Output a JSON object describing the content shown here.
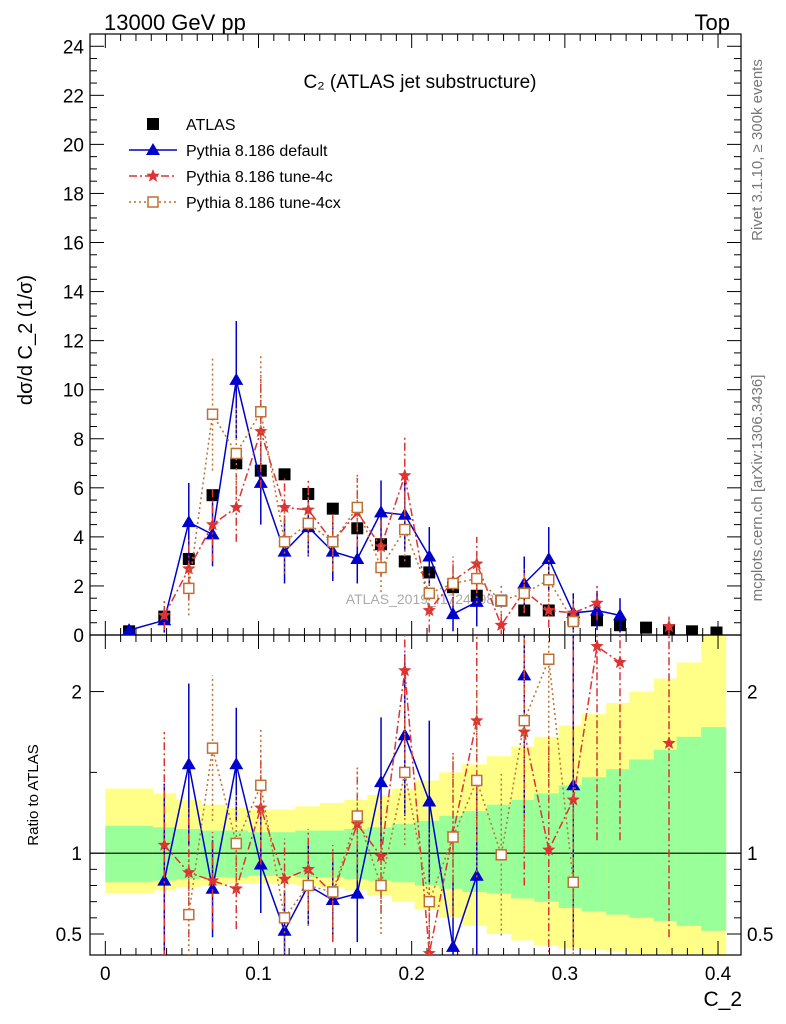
{
  "header": {
    "left": "13000 GeV pp",
    "right": "Top"
  },
  "side": {
    "rivet": "Rivet 3.1.10, ≥ 300k events",
    "mcplots": "mcplots.cern.ch [arXiv:1306.3436]"
  },
  "watermark": "ATLAS_2019_I1724098",
  "chart_data": [
    {
      "type": "scatter",
      "panel": "main",
      "title": "C₂ (ATLAS jet substructure)",
      "ylabel": "dσ/d C_2 (1/σ)",
      "xlim": [
        -0.01,
        0.415
      ],
      "ylim": [
        0,
        24.5
      ],
      "yticks": [
        0,
        2,
        4,
        6,
        8,
        10,
        12,
        14,
        16,
        18,
        20,
        22,
        24
      ],
      "legend_position": "top-left",
      "x": [
        0.0155,
        0.0385,
        0.0545,
        0.07,
        0.0855,
        0.1015,
        0.117,
        0.1325,
        0.1485,
        0.1645,
        0.18,
        0.1955,
        0.2115,
        0.227,
        0.2425,
        0.2585,
        0.2735,
        0.2895,
        0.3055,
        0.321,
        0.336,
        0.353,
        0.368,
        0.383,
        0.399
      ],
      "series": [
        {
          "name": "ATLAS",
          "color": "#000000",
          "marker": "square",
          "values": [
            0.15,
            0.75,
            3.1,
            5.7,
            7.0,
            6.7,
            6.55,
            5.75,
            5.15,
            4.35,
            3.7,
            3.0,
            2.55,
            1.95,
            1.6,
            1.4,
            1.0,
            1.0,
            0.65,
            0.6,
            0.4,
            0.3,
            0.2,
            0.15,
            0.1
          ]
        },
        {
          "name": "Pythia 8.186 default",
          "color": "#0000cc",
          "marker": "triangle",
          "values": [
            0.2,
            0.6,
            4.6,
            4.1,
            10.4,
            6.2,
            3.4,
            4.4,
            3.4,
            3.1,
            5.0,
            4.9,
            3.2,
            0.85,
            1.35,
            null,
            2.1,
            3.1,
            0.9,
            1.0,
            0.8,
            null,
            null,
            null,
            null
          ],
          "errors": [
            0.2,
            0.5,
            1.6,
            1.3,
            2.4,
            1.7,
            1.3,
            1.2,
            1.2,
            1.0,
            1.3,
            1.5,
            1.2,
            0.7,
            1.0,
            null,
            1.1,
            1.3,
            0.8,
            0.8,
            0.7,
            null,
            null,
            null,
            null
          ]
        },
        {
          "name": "Pythia 8.186 tune-4c",
          "color": "#dd3333",
          "marker": "star",
          "values": [
            null,
            0.8,
            2.7,
            4.5,
            5.2,
            8.3,
            5.2,
            5.1,
            3.8,
            5.0,
            3.6,
            6.5,
            1.0,
            2.2,
            2.9,
            0.4,
            1.8,
            1.0,
            0.9,
            1.3,
            null,
            null,
            0.35,
            null,
            null
          ],
          "errors": [
            null,
            0.6,
            1.3,
            1.5,
            1.4,
            2.3,
            1.3,
            1.3,
            1.2,
            1.4,
            1.2,
            1.6,
            0.9,
            1.0,
            1.1,
            0.5,
            0.9,
            0.7,
            0.6,
            0.7,
            null,
            null,
            0.4,
            null,
            null
          ]
        },
        {
          "name": "Pythia 8.186 tune-4cx",
          "color": "#c07030",
          "marker": "open-square",
          "values": [
            null,
            null,
            1.9,
            9.0,
            7.4,
            9.1,
            3.8,
            4.55,
            3.8,
            5.2,
            2.75,
            4.3,
            1.7,
            2.1,
            2.3,
            1.4,
            1.7,
            2.25,
            0.55,
            null,
            null,
            null,
            null,
            null,
            null
          ],
          "errors": [
            null,
            null,
            1.1,
            2.3,
            1.9,
            2.3,
            1.3,
            1.3,
            1.2,
            1.4,
            1.0,
            1.3,
            0.9,
            0.9,
            1.0,
            0.7,
            0.8,
            0.9,
            0.4,
            null,
            null,
            null,
            null,
            null,
            null
          ]
        }
      ]
    },
    {
      "type": "scatter",
      "panel": "ratio",
      "xlabel": "C_2",
      "ylabel": "Ratio to ATLAS",
      "xlim": [
        -0.01,
        0.415
      ],
      "ylim": [
        0.37,
        2.35
      ],
      "yticks": [
        0.5,
        1,
        2
      ],
      "xticks": [
        0,
        0.1,
        0.2,
        0.3,
        0.4
      ],
      "bands": {
        "edges": [
          0.0,
          0.031,
          0.046,
          0.062,
          0.078,
          0.093,
          0.109,
          0.124,
          0.14,
          0.156,
          0.171,
          0.187,
          0.202,
          0.218,
          0.233,
          0.249,
          0.265,
          0.28,
          0.296,
          0.311,
          0.327,
          0.342,
          0.358,
          0.373,
          0.389,
          0.405
        ],
        "stat_color": "#99ff99",
        "total_color": "#ffff88",
        "stat_lo": [
          0.82,
          0.83,
          0.84,
          0.85,
          0.85,
          0.86,
          0.86,
          0.85,
          0.85,
          0.84,
          0.83,
          0.82,
          0.8,
          0.78,
          0.76,
          0.75,
          0.72,
          0.7,
          0.66,
          0.64,
          0.62,
          0.6,
          0.58,
          0.55,
          0.52
        ],
        "stat_hi": [
          1.17,
          1.16,
          1.15,
          1.14,
          1.14,
          1.13,
          1.13,
          1.14,
          1.14,
          1.15,
          1.16,
          1.18,
          1.2,
          1.23,
          1.26,
          1.3,
          1.33,
          1.37,
          1.42,
          1.47,
          1.52,
          1.58,
          1.64,
          1.72,
          1.78
        ],
        "total_lo": [
          0.75,
          0.77,
          0.79,
          0.8,
          0.81,
          0.81,
          0.81,
          0.8,
          0.79,
          0.77,
          0.74,
          0.7,
          0.65,
          0.6,
          0.55,
          0.5,
          0.46,
          0.43,
          0.41,
          0.4,
          0.39,
          0.38,
          0.38,
          0.38,
          0.37
        ],
        "total_hi": [
          1.4,
          1.37,
          1.33,
          1.3,
          1.28,
          1.27,
          1.27,
          1.29,
          1.31,
          1.33,
          1.36,
          1.4,
          1.45,
          1.5,
          1.55,
          1.6,
          1.66,
          1.72,
          1.79,
          1.86,
          1.93,
          2.0,
          2.08,
          2.18,
          2.35
        ]
      },
      "x": [
        0.0155,
        0.0385,
        0.0545,
        0.07,
        0.0855,
        0.1015,
        0.117,
        0.1325,
        0.1485,
        0.1645,
        0.18,
        0.1955,
        0.2115,
        0.227,
        0.2425,
        0.2585,
        0.2735,
        0.2895,
        0.3055,
        0.321,
        0.336,
        0.353,
        0.368,
        0.383,
        0.399
      ],
      "series": [
        {
          "name": "Pythia 8.186 default",
          "color": "#0000cc",
          "marker": "triangle",
          "values": [
            null,
            0.83,
            1.55,
            0.78,
            1.55,
            0.93,
            0.52,
            0.8,
            0.71,
            0.75,
            1.44,
            1.73,
            1.32,
            0.42,
            0.86,
            null,
            2.1,
            null,
            1.42,
            null,
            null,
            null,
            null,
            null,
            null
          ],
          "errors": [
            null,
            0.6,
            0.5,
            0.3,
            0.35,
            0.3,
            0.25,
            0.25,
            0.25,
            0.3,
            0.4,
            0.5,
            0.5,
            0.4,
            0.6,
            null,
            0.9,
            null,
            1.0,
            null,
            null,
            null,
            null,
            null,
            null
          ]
        },
        {
          "name": "Pythia 8.186 tune-4c",
          "color": "#dd3333",
          "marker": "star",
          "values": [
            null,
            1.05,
            0.88,
            0.83,
            0.78,
            1.28,
            0.84,
            0.9,
            0.75,
            1.18,
            0.98,
            2.13,
            0.38,
            1.12,
            1.82,
            null,
            1.75,
            1.02,
            1.33,
            2.28,
            2.18,
            null,
            1.68,
            null,
            null
          ],
          "errors": [
            null,
            0.7,
            0.4,
            0.3,
            0.25,
            0.35,
            0.25,
            0.25,
            0.3,
            0.35,
            0.35,
            0.55,
            0.4,
            0.5,
            0.75,
            null,
            0.95,
            0.7,
            1.0,
            1.2,
            1.1,
            null,
            1.2,
            null,
            null
          ]
        },
        {
          "name": "Pythia 8.186 tune-4cx",
          "color": "#c07030",
          "marker": "open-square",
          "values": [
            null,
            null,
            0.62,
            1.65,
            1.06,
            1.42,
            0.6,
            0.8,
            0.76,
            1.23,
            0.8,
            1.5,
            0.7,
            1.1,
            1.45,
            0.99,
            1.82,
            2.2,
            0.82,
            null,
            null,
            null,
            null,
            null,
            null
          ],
          "errors": [
            null,
            null,
            0.35,
            0.45,
            0.3,
            0.35,
            0.25,
            0.25,
            0.25,
            0.3,
            0.3,
            0.45,
            0.45,
            0.5,
            0.6,
            0.5,
            0.8,
            0.95,
            0.6,
            null,
            null,
            null,
            null,
            null,
            null
          ]
        }
      ]
    }
  ]
}
